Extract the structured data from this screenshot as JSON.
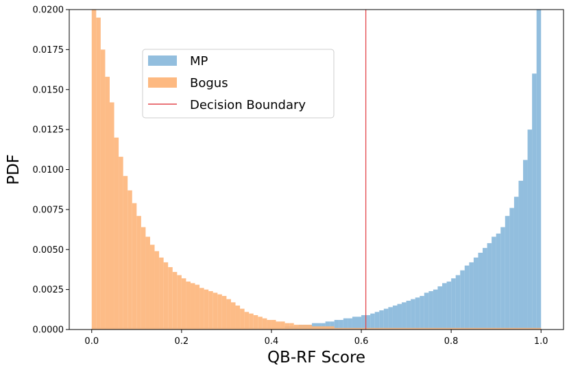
{
  "chart_data": {
    "type": "bar",
    "subtype": "histogram",
    "title": "",
    "xlabel": "QB-RF Score",
    "ylabel": "PDF",
    "xlim": [
      -0.05,
      1.05
    ],
    "ylim": [
      0,
      0.02
    ],
    "grid": false,
    "legend_placement": "upper-left-inside",
    "xticks": [
      0.0,
      0.2,
      0.4,
      0.6,
      0.8,
      1.0
    ],
    "xtick_labels": [
      "0.0",
      "0.2",
      "0.4",
      "0.6",
      "0.8",
      "1.0"
    ],
    "yticks": [
      0,
      0.0025,
      0.005,
      0.0075,
      0.01,
      0.0125,
      0.015,
      0.0175,
      0.02
    ],
    "ytick_labels": [
      "0.0000",
      "0.0025",
      "0.0050",
      "0.0075",
      "0.0100",
      "0.0125",
      "0.0150",
      "0.0175",
      "0.0200"
    ],
    "bin_width": 0.01,
    "series": [
      {
        "name": "MP",
        "color": "#7fb3d8",
        "bin_starts": [
          0.0,
          0.01,
          0.02,
          0.03,
          0.04,
          0.05,
          0.06,
          0.07,
          0.08,
          0.09,
          0.1,
          0.11,
          0.12,
          0.13,
          0.14,
          0.15,
          0.16,
          0.17,
          0.18,
          0.19,
          0.2,
          0.21,
          0.22,
          0.23,
          0.24,
          0.25,
          0.26,
          0.27,
          0.28,
          0.29,
          0.3,
          0.31,
          0.32,
          0.33,
          0.34,
          0.35,
          0.36,
          0.37,
          0.38,
          0.39,
          0.4,
          0.41,
          0.42,
          0.43,
          0.44,
          0.45,
          0.46,
          0.47,
          0.48,
          0.49,
          0.5,
          0.51,
          0.52,
          0.53,
          0.54,
          0.55,
          0.56,
          0.57,
          0.58,
          0.59,
          0.6,
          0.61,
          0.62,
          0.63,
          0.64,
          0.65,
          0.66,
          0.67,
          0.68,
          0.69,
          0.7,
          0.71,
          0.72,
          0.73,
          0.74,
          0.75,
          0.76,
          0.77,
          0.78,
          0.79,
          0.8,
          0.81,
          0.82,
          0.83,
          0.84,
          0.85,
          0.86,
          0.87,
          0.88,
          0.89,
          0.9,
          0.91,
          0.92,
          0.93,
          0.94,
          0.95,
          0.96,
          0.97,
          0.98,
          0.99
        ],
        "values": [
          0.0001,
          0.0001,
          0.0001,
          0.0001,
          0.0001,
          0.0001,
          0.0001,
          0.0001,
          0.0001,
          0.0001,
          0.0001,
          0.0001,
          0.0001,
          0.0001,
          0.0001,
          0.0001,
          0.0001,
          0.0001,
          0.0001,
          0.0001,
          0.0001,
          0.0001,
          0.0001,
          0.0001,
          0.0001,
          0.0001,
          0.0001,
          0.0001,
          0.0001,
          0.0001,
          0.0001,
          0.0001,
          0.0001,
          0.0001,
          0.0001,
          0.0001,
          0.0001,
          0.0001,
          0.0001,
          0.0001,
          0.0001,
          0.0001,
          0.0001,
          0.0002,
          0.0002,
          0.0002,
          0.0003,
          0.0003,
          0.0003,
          0.0004,
          0.0004,
          0.0004,
          0.0005,
          0.0005,
          0.0006,
          0.0006,
          0.0007,
          0.0007,
          0.0008,
          0.0008,
          0.0009,
          0.0009,
          0.001,
          0.0011,
          0.0012,
          0.0013,
          0.0014,
          0.0015,
          0.0016,
          0.0017,
          0.0018,
          0.0019,
          0.002,
          0.0021,
          0.0023,
          0.0024,
          0.0025,
          0.0027,
          0.0029,
          0.003,
          0.0032,
          0.0034,
          0.0037,
          0.004,
          0.0042,
          0.0045,
          0.0048,
          0.0051,
          0.0054,
          0.0058,
          0.006,
          0.0064,
          0.0071,
          0.0076,
          0.0083,
          0.0093,
          0.0106,
          0.0125,
          0.016,
          0.0235
        ]
      },
      {
        "name": "Bogus",
        "color": "#fdb57a",
        "bin_starts": [
          0.0,
          0.01,
          0.02,
          0.03,
          0.04,
          0.05,
          0.06,
          0.07,
          0.08,
          0.09,
          0.1,
          0.11,
          0.12,
          0.13,
          0.14,
          0.15,
          0.16,
          0.17,
          0.18,
          0.19,
          0.2,
          0.21,
          0.22,
          0.23,
          0.24,
          0.25,
          0.26,
          0.27,
          0.28,
          0.29,
          0.3,
          0.31,
          0.32,
          0.33,
          0.34,
          0.35,
          0.36,
          0.37,
          0.38,
          0.39,
          0.4,
          0.41,
          0.42,
          0.43,
          0.44,
          0.45,
          0.46,
          0.47,
          0.48,
          0.49,
          0.5,
          0.51,
          0.52,
          0.53,
          0.54,
          0.55,
          0.56,
          0.57,
          0.58,
          0.59,
          0.6,
          0.61,
          0.62,
          0.63,
          0.64,
          0.65,
          0.66,
          0.67,
          0.68,
          0.69,
          0.7,
          0.71,
          0.72,
          0.73,
          0.74,
          0.75,
          0.76,
          0.77,
          0.78,
          0.79,
          0.8,
          0.81,
          0.82,
          0.83,
          0.84,
          0.85,
          0.86,
          0.87,
          0.88,
          0.89,
          0.9,
          0.91,
          0.92,
          0.93,
          0.94,
          0.95,
          0.96,
          0.97,
          0.98,
          0.99
        ],
        "values": [
          0.0235,
          0.0195,
          0.0175,
          0.0158,
          0.0142,
          0.012,
          0.0108,
          0.0096,
          0.0087,
          0.0079,
          0.0071,
          0.0064,
          0.0058,
          0.0053,
          0.0049,
          0.0045,
          0.0042,
          0.0039,
          0.0036,
          0.0034,
          0.0032,
          0.003,
          0.0029,
          0.0028,
          0.0026,
          0.0025,
          0.0024,
          0.0023,
          0.0022,
          0.0021,
          0.0019,
          0.0017,
          0.0015,
          0.0013,
          0.0011,
          0.001,
          0.0009,
          0.0008,
          0.0007,
          0.0006,
          0.0006,
          0.0005,
          0.0005,
          0.0004,
          0.0004,
          0.0003,
          0.0003,
          0.0003,
          0.0003,
          0.0002,
          0.0002,
          0.0002,
          0.0002,
          0.0002,
          0.0001,
          0.0001,
          0.0001,
          0.0001,
          0.0001,
          0.0001,
          0.0001,
          0.0001,
          0.0001,
          0.0001,
          0.0001,
          0.0001,
          0.0001,
          0.0001,
          0.0001,
          0.0001,
          0.0001,
          0.0001,
          0.0001,
          0.0001,
          0.0001,
          0.0001,
          0.0001,
          0.0001,
          0.0001,
          0.0001,
          0.0001,
          0.0001,
          0.0001,
          0.0001,
          0.0001,
          0.0001,
          0.0001,
          0.0001,
          0.0001,
          0.0001,
          0.0001,
          0.0001,
          0.0001,
          0.0001,
          0.0001,
          0.0001,
          0.0001,
          0.0001,
          0.0001,
          0.0001
        ]
      }
    ],
    "decision_boundary": {
      "name": "Decision Boundary",
      "x": 0.61,
      "color": "#e3474b"
    }
  }
}
